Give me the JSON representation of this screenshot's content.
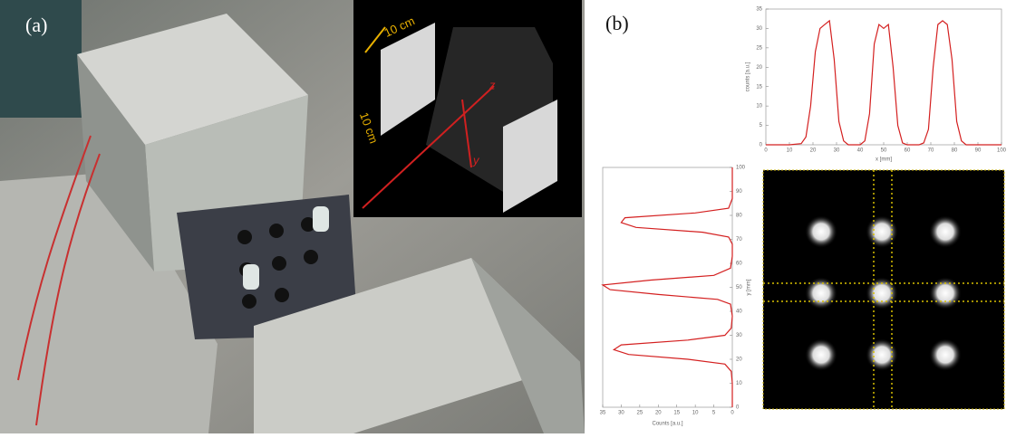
{
  "panel_a": {
    "label": "(a)",
    "dimension_labels": [
      "10 cm",
      "10 cm"
    ],
    "axis_labels": [
      "z",
      "y"
    ]
  },
  "panel_b": {
    "label": "(b)"
  },
  "chart_data": [
    {
      "type": "line",
      "orientation": "horizontal",
      "x_label": "x [mm]",
      "y_label": "counts [a.u.]",
      "color": "#d42020",
      "x": [
        0,
        5,
        10,
        15,
        17,
        19,
        21,
        23,
        25,
        27,
        29,
        31,
        33,
        35,
        40,
        42,
        44,
        46,
        48,
        50,
        52,
        54,
        56,
        58,
        60,
        65,
        67,
        69,
        71,
        73,
        75,
        77,
        79,
        81,
        83,
        85,
        90,
        95,
        100
      ],
      "values": [
        0,
        0,
        0,
        0.3,
        2,
        10,
        24,
        30,
        31,
        32,
        22,
        6,
        1,
        0,
        0,
        1,
        8,
        26,
        31,
        30,
        31,
        20,
        5,
        0.5,
        0,
        0,
        0.5,
        4,
        20,
        31,
        32,
        31,
        22,
        6,
        1,
        0,
        0,
        0,
        0
      ],
      "xlim": [
        0,
        100
      ],
      "xticks": [
        0,
        10,
        20,
        30,
        40,
        50,
        60,
        70,
        80,
        90,
        100
      ],
      "ylim": [
        0,
        35
      ],
      "yticks": [
        0,
        5,
        10,
        15,
        20,
        25,
        30,
        35
      ]
    },
    {
      "type": "line",
      "orientation": "vertical",
      "x_label": "Counts [a.u.]",
      "y_label": "y [mm]",
      "color": "#d42020",
      "y": [
        0,
        5,
        10,
        15,
        18,
        20,
        22,
        24,
        26,
        28,
        30,
        33,
        38,
        43,
        45,
        47,
        49,
        51,
        53,
        55,
        58,
        63,
        68,
        71,
        73,
        75,
        77,
        79,
        81,
        83,
        87,
        92,
        97,
        100
      ],
      "values": [
        0,
        0,
        0,
        0.3,
        2,
        12,
        28,
        32,
        30,
        12,
        2,
        0.3,
        0,
        0.5,
        4,
        20,
        33,
        35,
        22,
        5,
        0.5,
        0,
        0,
        1,
        8,
        26,
        30,
        29,
        10,
        1,
        0,
        0,
        0,
        0
      ],
      "xlim": [
        35,
        0
      ],
      "xticks": [
        35,
        30,
        25,
        20,
        15,
        10,
        5,
        0
      ],
      "ylim": [
        0,
        100
      ],
      "yticks": [
        0,
        10,
        20,
        30,
        40,
        50,
        60,
        70,
        80,
        90,
        100
      ]
    }
  ]
}
